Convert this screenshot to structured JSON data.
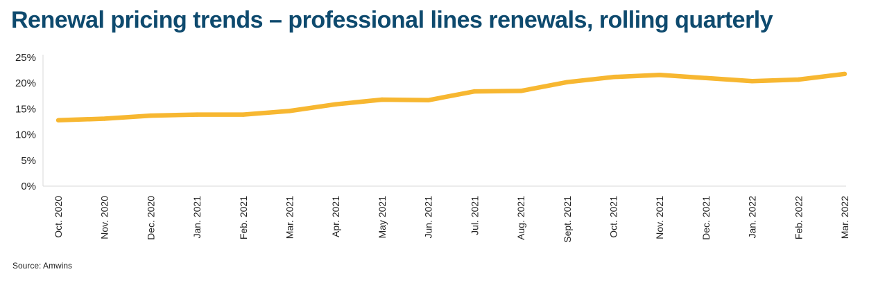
{
  "chart_data": {
    "type": "line",
    "title": "Renewal pricing trends – professional lines renewals, rolling quarterly",
    "xlabel": "",
    "ylabel": "",
    "categories": [
      "Oct. 2020",
      "Nov. 2020",
      "Dec. 2020",
      "Jan. 2021",
      "Feb. 2021",
      "Mar. 2021",
      "Apr. 2021",
      "May 2021",
      "Jun. 2021",
      "Jul. 2021",
      "Aug. 2021",
      "Sept. 2021",
      "Oct. 2021",
      "Nov. 2021",
      "Dec. 2021",
      "Jan. 2022",
      "Feb. 2022",
      "Mar. 2022"
    ],
    "series": [
      {
        "values": [
          12.8,
          13.1,
          13.7,
          13.9,
          13.9,
          14.6,
          15.9,
          16.8,
          16.7,
          18.4,
          18.5,
          20.2,
          21.2,
          21.6,
          21.0,
          20.4,
          20.7,
          21.8
        ]
      }
    ],
    "ylim": [
      0,
      25
    ],
    "yticks": [
      0,
      5,
      10,
      15,
      20,
      25
    ],
    "ytick_labels": [
      "0%",
      "5%",
      "10%",
      "15%",
      "20%",
      "25%"
    ],
    "grid": false,
    "legend": "none",
    "line_color": "#f7b731",
    "source": "Source: Amwins"
  },
  "colors": {
    "title": "#0e4a6e",
    "text": "#222222",
    "axis": "#d9d9d9"
  }
}
